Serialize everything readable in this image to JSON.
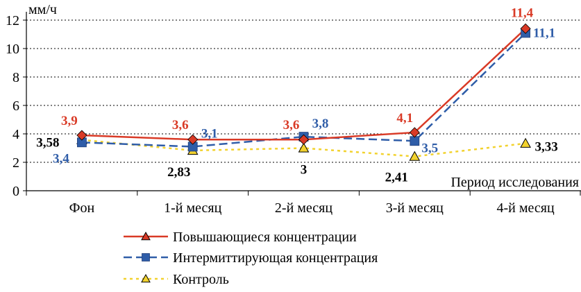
{
  "chart_data": {
    "type": "line",
    "y_unit": "мм/ч",
    "xlabel": "Период исследования",
    "ylim": [
      0,
      12
    ],
    "yticks": [
      0,
      2,
      4,
      6,
      8,
      10,
      12
    ],
    "grid": "horizontal dotted",
    "legend_position": "bottom",
    "categories": [
      "Фон",
      "1-й месяц",
      "2-й месяц",
      "3-й месяц",
      "4-й месяц"
    ],
    "series": [
      {
        "name": "Повышающиеся концентрации",
        "color": "#d93a26",
        "style": "solid",
        "marker": "diamond",
        "legend_marker": "triangle",
        "values": [
          3.9,
          3.6,
          3.6,
          4.1,
          11.4
        ],
        "labels": [
          "3,9",
          "3,6",
          "3,6",
          "4,1",
          "11,4"
        ]
      },
      {
        "name": "Интермиттирующая концентрация",
        "color": "#2f5da8",
        "style": "dashed",
        "marker": "square",
        "legend_marker": "square",
        "values": [
          3.4,
          3.1,
          3.8,
          3.5,
          11.1
        ],
        "labels": [
          "3,4",
          "3,1",
          "3,8",
          "3,5",
          "11,1"
        ]
      },
      {
        "name": "Контроль",
        "color": "#f2d22e",
        "style": "dotted",
        "marker": "triangle",
        "legend_marker": "triangle",
        "values": [
          3.58,
          2.83,
          3,
          2.41,
          3.33
        ],
        "labels": [
          "3,58",
          "2,83",
          "3",
          "2,41",
          "3,33"
        ]
      }
    ]
  }
}
